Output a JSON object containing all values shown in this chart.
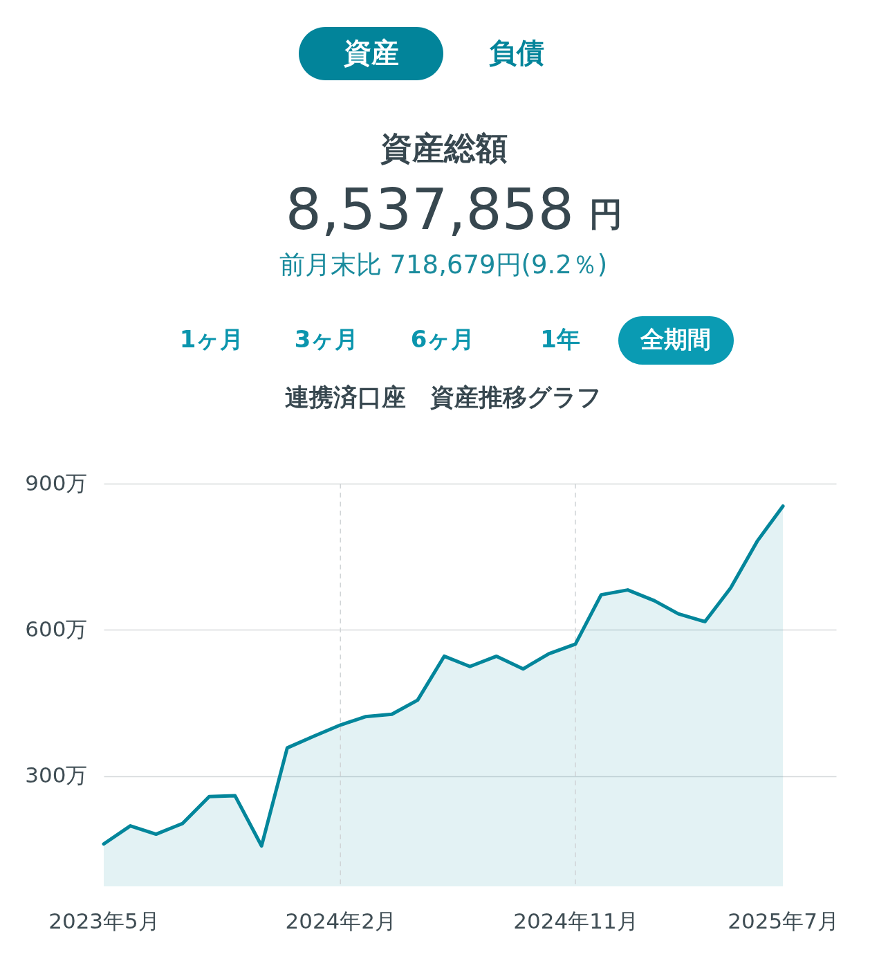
{
  "chart_data": {
    "type": "area",
    "title": "連携済口座　資産推移グラフ",
    "annotations": [
      "資産",
      "負債",
      "資産総額",
      "8,537,858",
      "円",
      "前月末比 718,679円(9.2％)",
      "1ヶ月",
      "3ヶ月",
      "6ヶ月",
      "1年",
      "全期間"
    ],
    "x": [
      "2023-05",
      "2023-06",
      "2023-07",
      "2023-08",
      "2023-09",
      "2023-10",
      "2023-11",
      "2023-12",
      "2024-01",
      "2024-02",
      "2024-03",
      "2024-04",
      "2024-05",
      "2024-06",
      "2024-07",
      "2024-08",
      "2024-09",
      "2024-10",
      "2024-11",
      "2024-12",
      "2025-01",
      "2025-02",
      "2025-03",
      "2025-04",
      "2025-05",
      "2025-06",
      "2025-07"
    ],
    "series": [
      {
        "color": "#03869b",
        "values": [
          161,
          198,
          181,
          203,
          258,
          260,
          157,
          358,
          382,
          405,
          422,
          427,
          456,
          546,
          525,
          546,
          520,
          551,
          571,
          672,
          682,
          660,
          633,
          617,
          686,
          782,
          854
        ]
      }
    ],
    "xlim": [
      "2023-05",
      "2025-09"
    ],
    "xticks": [
      {
        "value": "2023-05",
        "label": "2023年5月"
      },
      {
        "value": "2024-02",
        "label": "2024年2月"
      },
      {
        "value": "2024-11",
        "label": "2024年11月"
      },
      {
        "value": "2025-07",
        "label": "2025年7月"
      }
    ],
    "ylim": [
      74,
      900
    ],
    "yticks": [
      {
        "value": 300,
        "label": "300万"
      },
      {
        "value": 600,
        "label": "600万"
      },
      {
        "value": 900,
        "label": "900万"
      }
    ],
    "grid": "y",
    "ref_lines": [
      {
        "axis": "x",
        "value": "2024-02",
        "color": "#d0d4d6",
        "line_style": "dashed"
      },
      {
        "axis": "x",
        "value": "2024-11",
        "color": "#d0d4d6",
        "line_style": "dashed"
      }
    ]
  }
}
